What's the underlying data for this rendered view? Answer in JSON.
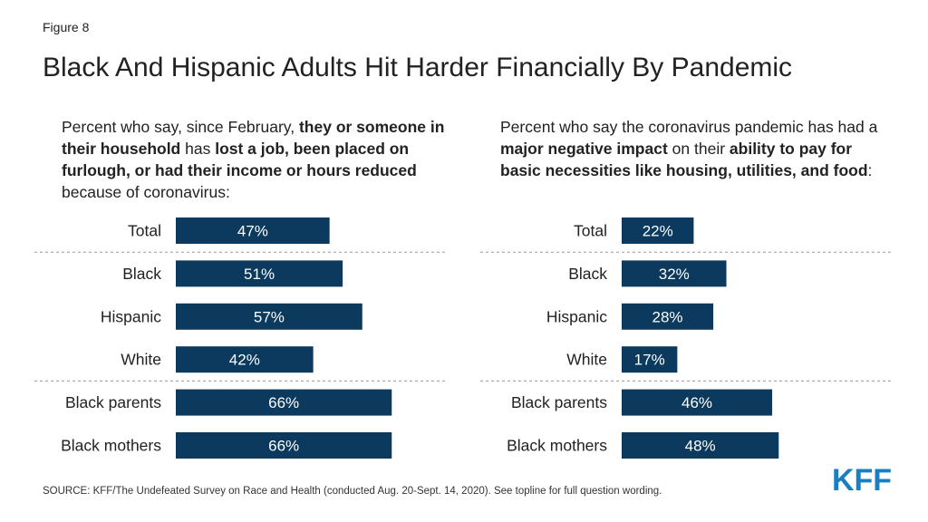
{
  "figure_label": "Figure 8",
  "title": "Black And Hispanic Adults Hit Harder Financially By Pandemic",
  "colors": {
    "bar": "#0b3a5e",
    "bar_text": "#ffffff",
    "logo": "#1a7fc1",
    "divider": "#9a9a9a"
  },
  "left_subtitle": [
    {
      "t": "Percent who say, since February, ",
      "b": false
    },
    {
      "t": "they or someone in their household",
      "b": true
    },
    {
      "t": " has ",
      "b": false
    },
    {
      "t": "lost a job, been placed on furlough, or had their income or hours reduced",
      "b": true
    },
    {
      "t": " because of coronavirus:",
      "b": false
    }
  ],
  "right_subtitle": [
    {
      "t": "Percent who say the coronavirus pandemic has had a ",
      "b": false
    },
    {
      "t": "major negative impact",
      "b": true
    },
    {
      "t": " on their ",
      "b": false
    },
    {
      "t": "ability to pay for basic necessities like housing, utilities, and food",
      "b": true
    },
    {
      "t": ":",
      "b": false
    }
  ],
  "chart_data": [
    {
      "type": "bar",
      "orientation": "horizontal",
      "categories": [
        "Total",
        "Black",
        "Hispanic",
        "White",
        "Black parents",
        "Black mothers"
      ],
      "values": [
        47,
        51,
        57,
        42,
        66,
        66
      ],
      "value_labels": [
        "47%",
        "51%",
        "57%",
        "42%",
        "66%",
        "66%"
      ],
      "xlim": [
        0,
        100
      ],
      "group_dividers_after": [
        0,
        3
      ]
    },
    {
      "type": "bar",
      "orientation": "horizontal",
      "categories": [
        "Total",
        "Black",
        "Hispanic",
        "White",
        "Black parents",
        "Black mothers"
      ],
      "values": [
        22,
        32,
        28,
        17,
        46,
        48
      ],
      "value_labels": [
        "22%",
        "32%",
        "28%",
        "17%",
        "46%",
        "48%"
      ],
      "xlim": [
        0,
        100
      ],
      "group_dividers_after": [
        0,
        3
      ]
    }
  ],
  "source": "SOURCE: KFF/The Undefeated Survey on Race and Health (conducted Aug. 20-Sept. 14, 2020). See topline for full question wording.",
  "logo_text": "KFF"
}
